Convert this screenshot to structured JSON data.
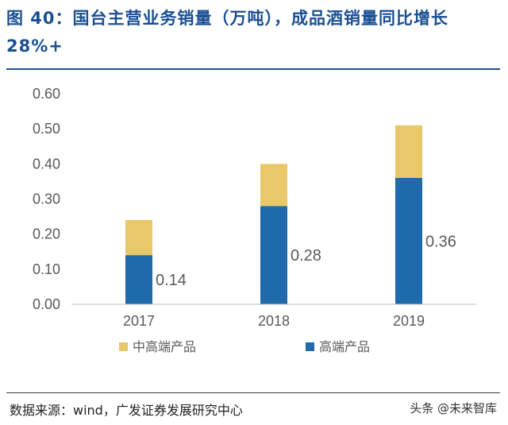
{
  "figure": {
    "title": "图 40：国台主营业务销量（万吨），成品酒销量同比增长28%+",
    "source": "数据来源：wind，广发证券发展研究中心",
    "watermark": "头条 @未来智库"
  },
  "colors": {
    "title": "#1a4f93",
    "high_end": "#1f6aaa",
    "mid_high_end": "#e9c86a",
    "axis_text": "#595959",
    "grid": "#d9d9d9"
  },
  "chart_data": {
    "type": "bar",
    "stacked": true,
    "categories": [
      "2017",
      "2018",
      "2019"
    ],
    "series": [
      {
        "name": "高端产品",
        "values": [
          0.14,
          0.28,
          0.36
        ],
        "labels": [
          "0.14",
          "0.28",
          "0.36"
        ],
        "color": "#1f6aaa"
      },
      {
        "name": "中高端产品",
        "values": [
          0.1,
          0.12,
          0.15
        ],
        "color": "#e9c86a"
      }
    ],
    "y_ticks": [
      "0.00",
      "0.10",
      "0.20",
      "0.30",
      "0.40",
      "0.50",
      "0.60"
    ],
    "ylim": [
      0,
      0.6
    ],
    "grid": false,
    "legend_position": "bottom",
    "legend_order": [
      "中高端产品",
      "高端产品"
    ]
  }
}
